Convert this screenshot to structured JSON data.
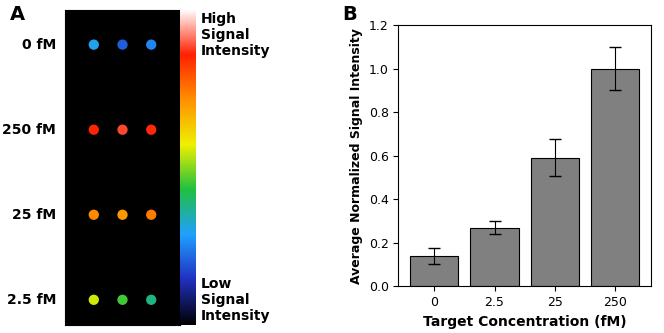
{
  "chart_data": {
    "type": "bar",
    "annotations": [
      "B"
    ],
    "x_label": "Target Concentration (fM)",
    "y_label": "Average Normalized Signal Intensity",
    "categories": [
      "0",
      "2.5",
      "25",
      "250"
    ],
    "values": [
      0.14,
      0.27,
      0.59,
      1.0
    ],
    "errors": [
      0.035,
      0.03,
      0.085,
      0.1
    ],
    "color": "#808080",
    "ylim": [
      0,
      1.2
    ],
    "yticks": [
      {
        "value": 0,
        "label": "0.0"
      },
      {
        "value": 0.2,
        "label": "0.2"
      },
      {
        "value": 0.4,
        "label": "0.4"
      },
      {
        "value": 0.6,
        "label": "0.6"
      },
      {
        "value": 0.8,
        "label": "0.8"
      },
      {
        "value": 1.0,
        "label": "1.0"
      },
      {
        "value": 1.2,
        "label": "1.2"
      }
    ]
  },
  "array_image": {
    "annotations": [
      "A"
    ],
    "row_labels": [
      "0 fM",
      "250 fM",
      "25 fM",
      "2.5 fM"
    ],
    "spot_intensity": [
      [
        0.3,
        0.2,
        0.25
      ],
      [
        0.85,
        0.88,
        0.86
      ],
      [
        0.72,
        0.7,
        0.74
      ],
      [
        0.55,
        0.45,
        0.38
      ]
    ],
    "colorbar_range": [
      0,
      1
    ],
    "colorbar_high_label": "High Signal Intensity",
    "colorbar_low_label": "Low Signal Intensity"
  }
}
